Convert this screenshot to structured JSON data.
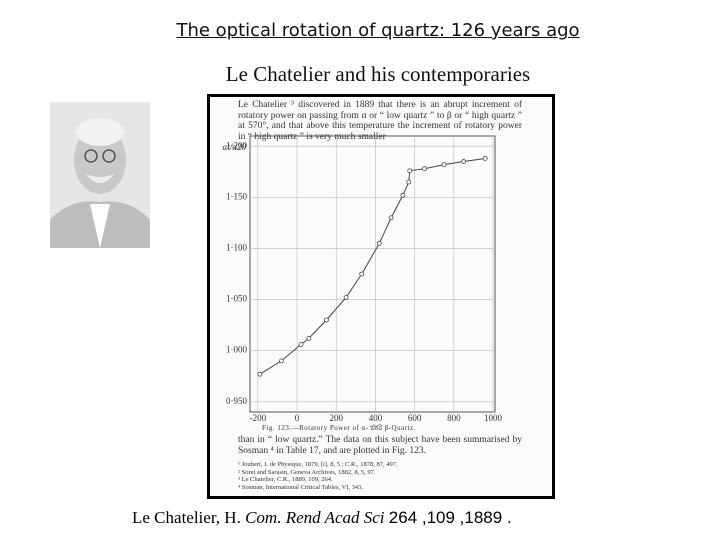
{
  "header": {
    "title": "The optical rotation of quartz: 126 years ago",
    "subtitle": "Le Chatelier and his contemporaries"
  },
  "scan": {
    "intro": "Le Chatelier ³ discovered in 1889 that there is an abrupt increment of rotatory power on passing from α or “ low quartz ” to β or “ high quartz ” at 570°, and that above this temperature the increment of rotatory power in “ high quartz ” is very much smaller",
    "caption": "Fig. 123.—Rotatory Power of α- and β-Quartz.",
    "body": "than in “ low quartz.” The data on this subject have been summarised by Sosman ⁴ in Table 17, and are plotted in Fig. 123.",
    "footnotes": [
      "¹ Joubert, J. de Physique, 1879, [i], 8, 5 ; C.R., 1878, 87, 497.",
      "² Soret and Sarasin, Geneva Archives, 1882, 8, 5, 97.",
      "³ Le Chatelier, C.R., 1889, 109, 264.",
      "⁴ Sosman, International Critical Tables, VI, 343."
    ]
  },
  "chart_data": {
    "type": "line",
    "y_label": "αt/α20",
    "x_label": "t°C",
    "x": [
      -190,
      -80,
      20,
      60,
      150,
      250,
      330,
      420,
      480,
      540,
      570,
      575,
      650,
      750,
      850,
      960
    ],
    "series": [
      {
        "color": "#444",
        "values": [
          0.977,
          0.99,
          1.006,
          1.012,
          1.03,
          1.052,
          1.075,
          1.105,
          1.13,
          1.152,
          1.165,
          1.176,
          1.178,
          1.182,
          1.185,
          1.188
        ]
      }
    ],
    "xlim": [
      -240,
      1010
    ],
    "ylim": [
      0.94,
      1.21
    ],
    "xticks": [
      -200,
      0,
      200,
      400,
      600,
      800,
      1000
    ],
    "yticks": [
      {
        "value": 0.95,
        "label": "0·950"
      },
      {
        "value": 1.0,
        "label": "1·000"
      },
      {
        "value": 1.05,
        "label": "1·050"
      },
      {
        "value": 1.1,
        "label": "1·100"
      },
      {
        "value": 1.15,
        "label": "1·150"
      },
      {
        "value": 1.2,
        "label": "1·200"
      }
    ],
    "grid": true
  },
  "citation": {
    "author": "Le Chatelier, H. ",
    "journal": "Com. Rend Acad Sci ",
    "reference": "264 ,109 ,1889 ."
  }
}
